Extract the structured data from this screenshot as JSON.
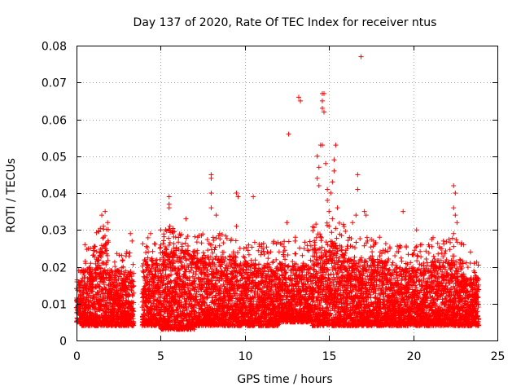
{
  "chart_data": {
    "type": "scatter",
    "title": "Day 137 of 2020, Rate Of TEC Index for receiver ntus",
    "xlabel": "GPS time / hours",
    "ylabel": "ROTI / TECUs",
    "xlim": [
      0,
      25
    ],
    "ylim": [
      0,
      0.08
    ],
    "xticks": [
      0,
      5,
      10,
      15,
      20,
      25
    ],
    "xtick_labels": [
      "0",
      "5",
      "10",
      "15",
      "20",
      "25"
    ],
    "yticks": [
      0,
      0.01,
      0.02,
      0.03,
      0.04,
      0.05,
      0.06,
      0.07,
      0.08
    ],
    "ytick_labels": [
      "0",
      "0.01",
      "0.02",
      "0.03",
      "0.04",
      "0.05",
      "0.06",
      "0.07",
      "0.08"
    ],
    "grid": true,
    "marker": "plus",
    "color": "#ff0000",
    "series_description": "dense band of ROTI samples 0.003-0.025 TECU/min, data gap ~3.4-3.9 h",
    "data_gap": [
      3.4,
      3.9
    ],
    "bands": [
      {
        "x": [
          0.0,
          0.3
        ],
        "lo": 0.005,
        "hi": 0.016
      },
      {
        "x": [
          0.3,
          1.0
        ],
        "lo": 0.004,
        "hi": 0.02
      },
      {
        "x": [
          1.0,
          1.9
        ],
        "lo": 0.004,
        "hi": 0.026
      },
      {
        "x": [
          1.9,
          3.4
        ],
        "lo": 0.004,
        "hi": 0.019
      },
      {
        "x": [
          3.9,
          5.0
        ],
        "lo": 0.004,
        "hi": 0.022
      },
      {
        "x": [
          5.0,
          7.0
        ],
        "lo": 0.003,
        "hi": 0.025
      },
      {
        "x": [
          7.0,
          9.5
        ],
        "lo": 0.004,
        "hi": 0.023
      },
      {
        "x": [
          9.5,
          12.0
        ],
        "lo": 0.004,
        "hi": 0.021
      },
      {
        "x": [
          12.0,
          14.0
        ],
        "lo": 0.005,
        "hi": 0.021
      },
      {
        "x": [
          14.0,
          16.0
        ],
        "lo": 0.004,
        "hi": 0.026
      },
      {
        "x": [
          16.0,
          18.5
        ],
        "lo": 0.004,
        "hi": 0.022
      },
      {
        "x": [
          18.5,
          21.0
        ],
        "lo": 0.004,
        "hi": 0.02
      },
      {
        "x": [
          21.0,
          23.0
        ],
        "lo": 0.004,
        "hi": 0.022
      },
      {
        "x": [
          23.0,
          23.9
        ],
        "lo": 0.004,
        "hi": 0.017
      }
    ],
    "outliers": [
      [
        0.5,
        0.026
      ],
      [
        1.5,
        0.034
      ],
      [
        1.6,
        0.031
      ],
      [
        1.7,
        0.035
      ],
      [
        1.6,
        0.028
      ],
      [
        3.2,
        0.029
      ],
      [
        3.3,
        0.027
      ],
      [
        4.4,
        0.029
      ],
      [
        5.0,
        0.03
      ],
      [
        5.5,
        0.039
      ],
      [
        5.5,
        0.037
      ],
      [
        5.5,
        0.036
      ],
      [
        6.5,
        0.033
      ],
      [
        7.2,
        0.028
      ],
      [
        8.0,
        0.045
      ],
      [
        8.0,
        0.044
      ],
      [
        8.0,
        0.04
      ],
      [
        8.0,
        0.036
      ],
      [
        8.3,
        0.034
      ],
      [
        8.5,
        0.029
      ],
      [
        9.5,
        0.04
      ],
      [
        9.6,
        0.039
      ],
      [
        9.5,
        0.031
      ],
      [
        10.5,
        0.039
      ],
      [
        11.0,
        0.024
      ],
      [
        12.6,
        0.056
      ],
      [
        13.2,
        0.066
      ],
      [
        13.3,
        0.065
      ],
      [
        13.0,
        0.028
      ],
      [
        12.5,
        0.032
      ],
      [
        14.3,
        0.05
      ],
      [
        14.4,
        0.047
      ],
      [
        14.3,
        0.044
      ],
      [
        14.4,
        0.042
      ],
      [
        14.5,
        0.053
      ],
      [
        14.6,
        0.053
      ],
      [
        14.6,
        0.067
      ],
      [
        14.7,
        0.067
      ],
      [
        14.6,
        0.065
      ],
      [
        14.6,
        0.063
      ],
      [
        14.7,
        0.062
      ],
      [
        14.8,
        0.048
      ],
      [
        14.9,
        0.041
      ],
      [
        14.9,
        0.038
      ],
      [
        15.0,
        0.035
      ],
      [
        15.1,
        0.04
      ],
      [
        15.2,
        0.043
      ],
      [
        15.3,
        0.046
      ],
      [
        15.3,
        0.049
      ],
      [
        15.4,
        0.053
      ],
      [
        15.2,
        0.033
      ],
      [
        15.0,
        0.031
      ],
      [
        15.5,
        0.036
      ],
      [
        16.4,
        0.032
      ],
      [
        16.6,
        0.034
      ],
      [
        16.7,
        0.041
      ],
      [
        16.7,
        0.045
      ],
      [
        16.9,
        0.077
      ],
      [
        17.1,
        0.035
      ],
      [
        17.2,
        0.034
      ],
      [
        19.4,
        0.035
      ],
      [
        18.0,
        0.028
      ],
      [
        20.2,
        0.03
      ],
      [
        20.5,
        0.026
      ],
      [
        22.4,
        0.042
      ],
      [
        22.5,
        0.04
      ],
      [
        22.4,
        0.036
      ],
      [
        22.5,
        0.034
      ],
      [
        22.6,
        0.032
      ],
      [
        22.4,
        0.029
      ],
      [
        23.0,
        0.026
      ],
      [
        23.4,
        0.024
      ]
    ]
  }
}
